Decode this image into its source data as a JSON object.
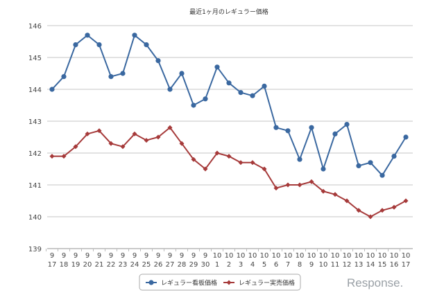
{
  "chart_data": {
    "type": "line",
    "title": "最近1ヶ月のレギュラー価格",
    "xlabel": "",
    "ylabel": "",
    "ylim": [
      139,
      146
    ],
    "yticks": [
      139,
      140,
      141,
      142,
      143,
      144,
      145,
      146
    ],
    "grid": true,
    "legend_position": "bottom",
    "categories": [
      [
        "9",
        "17"
      ],
      [
        "9",
        "18"
      ],
      [
        "9",
        "19"
      ],
      [
        "9",
        "20"
      ],
      [
        "9",
        "21"
      ],
      [
        "9",
        "22"
      ],
      [
        "9",
        "23"
      ],
      [
        "9",
        "24"
      ],
      [
        "9",
        "25"
      ],
      [
        "9",
        "26"
      ],
      [
        "9",
        "27"
      ],
      [
        "9",
        "28"
      ],
      [
        "9",
        "29"
      ],
      [
        "9",
        "30"
      ],
      [
        "10",
        "1"
      ],
      [
        "10",
        "2"
      ],
      [
        "10",
        "3"
      ],
      [
        "10",
        "4"
      ],
      [
        "10",
        "5"
      ],
      [
        "10",
        "6"
      ],
      [
        "10",
        "7"
      ],
      [
        "10",
        "8"
      ],
      [
        "10",
        "9"
      ],
      [
        "10",
        "10"
      ],
      [
        "10",
        "11"
      ],
      [
        "10",
        "12"
      ],
      [
        "10",
        "13"
      ],
      [
        "10",
        "14"
      ],
      [
        "10",
        "15"
      ],
      [
        "10",
        "16"
      ],
      [
        "10",
        "17"
      ]
    ],
    "series": [
      {
        "name": "レギュラー看板価格",
        "color": "#3a68a0",
        "marker": "circle",
        "values": [
          144.0,
          144.4,
          145.4,
          145.7,
          145.4,
          144.4,
          144.5,
          145.7,
          145.4,
          144.9,
          144.0,
          144.5,
          143.5,
          143.7,
          144.7,
          144.2,
          143.9,
          143.8,
          144.1,
          142.8,
          142.7,
          141.8,
          142.8,
          141.5,
          142.6,
          142.9,
          141.6,
          141.7,
          141.3,
          141.9,
          142.5
        ]
      },
      {
        "name": "レギュラー実売価格",
        "color": "#a63a3a",
        "marker": "diamond",
        "values": [
          141.9,
          141.9,
          142.2,
          142.6,
          142.7,
          142.3,
          142.2,
          142.6,
          142.4,
          142.5,
          142.8,
          142.3,
          141.8,
          141.5,
          142.0,
          141.9,
          141.7,
          141.7,
          141.5,
          140.9,
          141.0,
          141.0,
          141.1,
          140.8,
          140.7,
          140.5,
          140.2,
          140.0,
          140.2,
          140.3,
          140.5
        ]
      }
    ]
  },
  "watermark": "Response."
}
